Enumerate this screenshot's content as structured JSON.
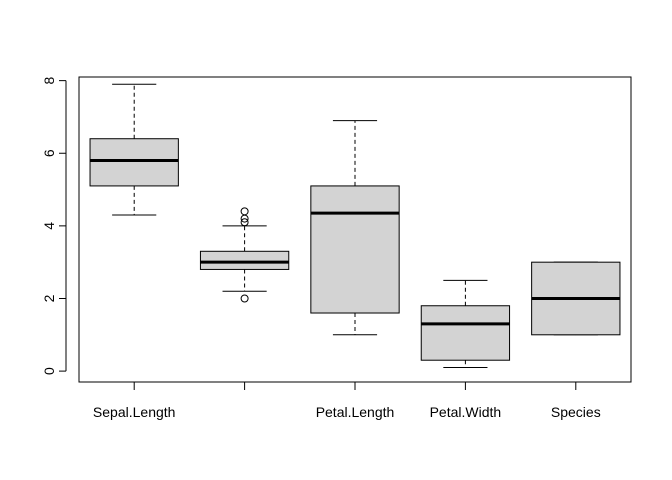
{
  "chart_data": {
    "type": "box",
    "title": "",
    "xlabel": "",
    "ylabel": "",
    "ylim": [
      -0.3,
      8.1
    ],
    "y_ticks": [
      0,
      2,
      4,
      6,
      8
    ],
    "categories": [
      "Sepal.Length",
      "",
      "Petal.Length",
      "Petal.Width",
      "Species"
    ],
    "boxes": [
      {
        "whisker_low": 4.3,
        "q1": 5.1,
        "median": 5.8,
        "q3": 6.4,
        "whisker_high": 7.9,
        "outliers": []
      },
      {
        "whisker_low": 2.2,
        "q1": 2.8,
        "median": 3.0,
        "q3": 3.3,
        "whisker_high": 4.0,
        "outliers": [
          2.0,
          4.1,
          4.2,
          4.4
        ]
      },
      {
        "whisker_low": 1.0,
        "q1": 1.6,
        "median": 4.35,
        "q3": 5.1,
        "whisker_high": 6.9,
        "outliers": []
      },
      {
        "whisker_low": 0.1,
        "q1": 0.3,
        "median": 1.3,
        "q3": 1.8,
        "whisker_high": 2.5,
        "outliers": []
      },
      {
        "whisker_low": 1.0,
        "q1": 1.0,
        "median": 2.0,
        "q3": 3.0,
        "whisker_high": 3.0,
        "outliers": []
      }
    ],
    "box_fill": "#d3d3d3",
    "grid": false,
    "legend": "none"
  }
}
